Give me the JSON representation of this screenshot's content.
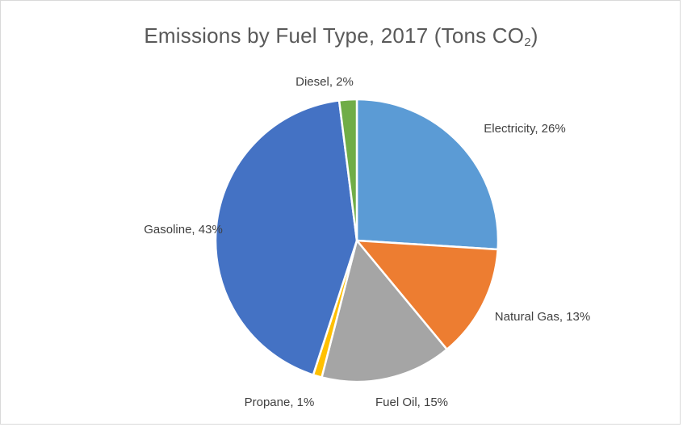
{
  "chart_data": {
    "type": "pie",
    "title": "Emissions by Fuel Type, 2017 (Tons CO",
    "title_subscript": "2",
    "title_suffix": ")",
    "legend": "none",
    "slices": [
      {
        "label": "Electricity",
        "value": 26,
        "data_label": "Electricity, 26%",
        "color": "#5b9bd5"
      },
      {
        "label": "Natural Gas",
        "value": 13,
        "data_label": "Natural Gas, 13%",
        "color": "#ed7d31"
      },
      {
        "label": "Fuel Oil",
        "value": 15,
        "data_label": "Fuel Oil, 15%",
        "color": "#a5a5a5"
      },
      {
        "label": "Propane",
        "value": 1,
        "data_label": "Propane, 1%",
        "color": "#ffc000"
      },
      {
        "label": "Gasoline",
        "value": 43,
        "data_label": "Gasoline, 43%",
        "color": "#4472c4"
      },
      {
        "label": "Diesel",
        "value": 2,
        "data_label": "Diesel, 2%",
        "color": "#70ad47"
      }
    ]
  }
}
